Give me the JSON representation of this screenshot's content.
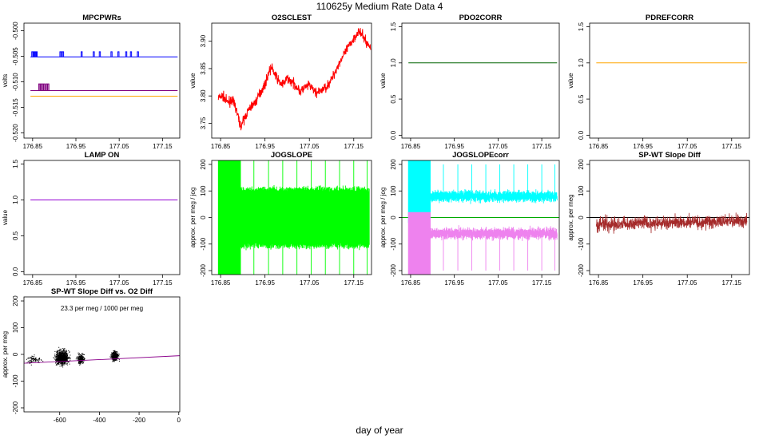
{
  "figure": {
    "title": "110625y   Medium Rate Data 4",
    "xlabel": "day of year"
  },
  "chart_data": [
    {
      "id": "mpcpwrs",
      "type": "line",
      "title": "MPCPWRs",
      "ylabel": "volts",
      "xlim": [
        176.83,
        177.19
      ],
      "ylim": [
        -0.521,
        -0.4985
      ],
      "xticks": [
        176.85,
        176.95,
        177.05,
        177.15
      ],
      "xtick_labels": [
        "176.85",
        "176.95",
        "177.05",
        "177.15"
      ],
      "yticks": [
        -0.5,
        -0.505,
        -0.51,
        -0.515,
        -0.52
      ],
      "ytick_labels": [
        "-0.500",
        "-0.505",
        "-0.510",
        "-0.515",
        "-0.520"
      ],
      "series": [
        {
          "name": "blue",
          "color": "#0000ff",
          "x": [
            176.845,
            177.185
          ],
          "y": [
            -0.5051,
            -0.5051
          ],
          "spikes_x": [
            176.848,
            176.851,
            176.853,
            176.856,
            176.858,
            176.913,
            176.916,
            176.919,
            176.962,
            176.99,
            177.004,
            177.031,
            177.047,
            177.065,
            177.076,
            177.092
          ],
          "spike_to": -0.5041,
          "spike_from": -0.5051
        },
        {
          "name": "purple",
          "color": "#800080",
          "x": [
            176.845,
            177.185
          ],
          "y": [
            -0.5117,
            -0.5117
          ],
          "spikes_x": [
            176.864,
            176.868,
            176.872,
            176.876,
            176.881,
            176.885
          ],
          "spike_to": -0.5104,
          "spike_from": -0.5117
        },
        {
          "name": "orange",
          "color": "#ffa500",
          "x": [
            176.845,
            177.185
          ],
          "y": [
            -0.5128,
            -0.5128
          ]
        }
      ]
    },
    {
      "id": "o2sclest",
      "type": "line",
      "title": "O2SCLEST",
      "ylabel": "value",
      "xlim": [
        176.83,
        177.19
      ],
      "ylim": [
        3.723,
        3.933
      ],
      "xticks": [
        176.85,
        176.95,
        177.05,
        177.15
      ],
      "xtick_labels": [
        "176.85",
        "176.95",
        "177.05",
        "177.15"
      ],
      "yticks": [
        3.75,
        3.8,
        3.85,
        3.9
      ],
      "ytick_labels": [
        "3.75",
        "3.80",
        "3.85",
        "3.90"
      ],
      "series": [
        {
          "name": "O2SCLEST",
          "color": "#ff0000",
          "noise": 0.006,
          "x": [
            176.845,
            176.855,
            176.865,
            176.875,
            176.883,
            176.89,
            176.895,
            176.9,
            176.91,
            176.92,
            176.93,
            176.94,
            176.95,
            176.958,
            176.965,
            176.972,
            176.98,
            176.99,
            177.0,
            177.01,
            177.02,
            177.03,
            177.04,
            177.05,
            177.06,
            177.07,
            177.08,
            177.09,
            177.1,
            177.11,
            177.12,
            177.13,
            177.14,
            177.15,
            177.16,
            177.17,
            177.18,
            177.188
          ],
          "y": [
            3.797,
            3.8,
            3.788,
            3.793,
            3.782,
            3.76,
            3.745,
            3.752,
            3.77,
            3.782,
            3.79,
            3.808,
            3.82,
            3.843,
            3.852,
            3.84,
            3.828,
            3.82,
            3.832,
            3.826,
            3.818,
            3.808,
            3.815,
            3.82,
            3.81,
            3.805,
            3.812,
            3.818,
            3.83,
            3.848,
            3.865,
            3.878,
            3.892,
            3.905,
            3.918,
            3.91,
            3.896,
            3.888
          ]
        }
      ]
    },
    {
      "id": "pdo2corr",
      "type": "line",
      "title": "PDO2CORR",
      "ylabel": "value",
      "xlim": [
        176.83,
        177.19
      ],
      "ylim": [
        -0.04,
        1.55
      ],
      "xticks": [
        176.85,
        176.95,
        177.05,
        177.15
      ],
      "xtick_labels": [
        "176.85",
        "176.95",
        "177.05",
        "177.15"
      ],
      "yticks": [
        0,
        0.5,
        1,
        1.5
      ],
      "ytick_labels": [
        "0.0",
        "0.5",
        "1.0",
        "1.5"
      ],
      "series": [
        {
          "name": "PDO2CORR",
          "color": "#006400",
          "x": [
            176.845,
            177.185
          ],
          "y": [
            1.0,
            1.0
          ]
        }
      ]
    },
    {
      "id": "pdrefcorr",
      "type": "line",
      "title": "PDREFCORR",
      "ylabel": "value",
      "xlim": [
        176.83,
        177.19
      ],
      "ylim": [
        -0.04,
        1.55
      ],
      "xticks": [
        176.85,
        176.95,
        177.05,
        177.15
      ],
      "xtick_labels": [
        "176.85",
        "176.95",
        "177.05",
        "177.15"
      ],
      "yticks": [
        0,
        0.5,
        1,
        1.5
      ],
      "ytick_labels": [
        "0.0",
        "0.5",
        "1.0",
        "1.5"
      ],
      "series": [
        {
          "name": "PDREFCORR",
          "color": "#ffa500",
          "x": [
            176.845,
            177.185
          ],
          "y": [
            1.0,
            1.0
          ]
        }
      ]
    },
    {
      "id": "lampon",
      "type": "line",
      "title": "LAMP ON",
      "ylabel": "value",
      "xlim": [
        176.83,
        177.19
      ],
      "ylim": [
        -0.04,
        1.55
      ],
      "xticks": [
        176.85,
        176.95,
        177.05,
        177.15
      ],
      "xtick_labels": [
        "176.85",
        "176.95",
        "177.05",
        "177.15"
      ],
      "yticks": [
        0,
        0.5,
        1,
        1.5
      ],
      "ytick_labels": [
        "0.0",
        "0.5",
        "1.0",
        "1.5"
      ],
      "series": [
        {
          "name": "LAMP ON",
          "color": "#9400d3",
          "x": [
            176.845,
            177.185
          ],
          "y": [
            1.0,
            1.0
          ]
        }
      ]
    },
    {
      "id": "jogslope",
      "type": "line",
      "title": "JOGSLOPE",
      "ylabel": "approx. per meg / jog",
      "xlim": [
        176.83,
        177.19
      ],
      "ylim": [
        -215,
        215
      ],
      "xticks": [
        176.85,
        176.95,
        177.05,
        177.15
      ],
      "xtick_labels": [
        "176.85",
        "176.95",
        "177.05",
        "177.15"
      ],
      "yticks": [
        -200,
        -100,
        0,
        100,
        200
      ],
      "ytick_labels": [
        "-200",
        "-100",
        "0",
        "100",
        "200"
      ],
      "series": [
        {
          "name": "JOGSLOPE",
          "color": "#00ff00",
          "band_upper": 100,
          "band_lower": -100,
          "band_noise": 12,
          "x_range": [
            176.845,
            177.185
          ],
          "wild_until": 176.895,
          "spike_x": [
            176.925,
            176.958,
            176.99,
            177.022,
            177.054,
            177.086,
            177.118,
            177.15,
            177.18
          ]
        }
      ]
    },
    {
      "id": "jogslopecorr",
      "type": "line",
      "title": "JOGSLOPEcorr",
      "ylabel": "approx. per meg / jog",
      "xlim": [
        176.83,
        177.19
      ],
      "ylim": [
        -215,
        215
      ],
      "xticks": [
        176.85,
        176.95,
        177.05,
        177.15
      ],
      "xtick_labels": [
        "176.85",
        "176.95",
        "177.05",
        "177.15"
      ],
      "yticks": [
        -200,
        -100,
        0,
        100,
        200
      ],
      "ytick_labels": [
        "-200",
        "-100",
        "0",
        "100",
        "200"
      ],
      "hline": {
        "y": 0,
        "color": "#00aa00"
      },
      "series": [
        {
          "name": "upper",
          "color": "#00ffff",
          "band_center": 80,
          "band_noise": 14,
          "x_range": [
            176.845,
            177.185
          ],
          "wild_until": 176.895,
          "spike_x": [
            176.925,
            176.958,
            176.99,
            177.022,
            177.054,
            177.086,
            177.118,
            177.15,
            177.18
          ],
          "spike_to": 200
        },
        {
          "name": "lower",
          "color": "#ee82ee",
          "band_center": -60,
          "band_noise": 14,
          "x_range": [
            176.845,
            177.185
          ],
          "wild_until": 176.895,
          "spike_x": [
            176.925,
            176.958,
            176.99,
            177.022,
            177.054,
            177.086,
            177.118,
            177.15,
            177.18
          ],
          "spike_to": -200
        }
      ]
    },
    {
      "id": "spwt",
      "type": "line",
      "title": "SP-WT Slope Diff",
      "ylabel": "approx. per meg",
      "xlim": [
        176.83,
        177.19
      ],
      "ylim": [
        -215,
        215
      ],
      "xticks": [
        176.85,
        176.95,
        177.05,
        177.15
      ],
      "xtick_labels": [
        "176.85",
        "176.95",
        "177.05",
        "177.15"
      ],
      "yticks": [
        -200,
        -100,
        0,
        100,
        200
      ],
      "ytick_labels": [
        "-200",
        "-100",
        "0",
        "100",
        "200"
      ],
      "hline": {
        "y": 0,
        "color": "#000000"
      },
      "series": [
        {
          "name": "SP-WT",
          "color": "#a52a2a",
          "x_range": [
            176.845,
            177.185
          ],
          "center": -25,
          "noise": 18
        }
      ]
    },
    {
      "id": "scatter",
      "type": "scatter",
      "title": "SP-WT Slope Diff vs. O2 Diff",
      "ylabel": "approx. per meg",
      "annotation": "23.3 per meg / 1000 per meg",
      "annotation_color": "#8b008b",
      "xlim": [
        -780,
        5
      ],
      "ylim": [
        -215,
        215
      ],
      "xticks": [
        -600,
        -400,
        -200,
        0
      ],
      "xtick_labels": [
        "-600",
        "-400",
        "-200",
        "0"
      ],
      "yticks": [
        -200,
        -100,
        0,
        100,
        200
      ],
      "ytick_labels": [
        "-200",
        "-100",
        "0",
        "100",
        "200"
      ],
      "fit": {
        "slope": 0.0233,
        "intercept": -5,
        "color": "#8b008b"
      },
      "clusters": [
        {
          "cx": -590,
          "cy": -10,
          "sx": 22,
          "sy": 18,
          "n": 900
        },
        {
          "cx": -495,
          "cy": -15,
          "sx": 12,
          "sy": 12,
          "n": 250
        },
        {
          "cx": -325,
          "cy": -5,
          "sx": 12,
          "sy": 12,
          "n": 350
        },
        {
          "cx": -730,
          "cy": -20,
          "sx": 30,
          "sy": 10,
          "n": 90
        }
      ]
    }
  ]
}
